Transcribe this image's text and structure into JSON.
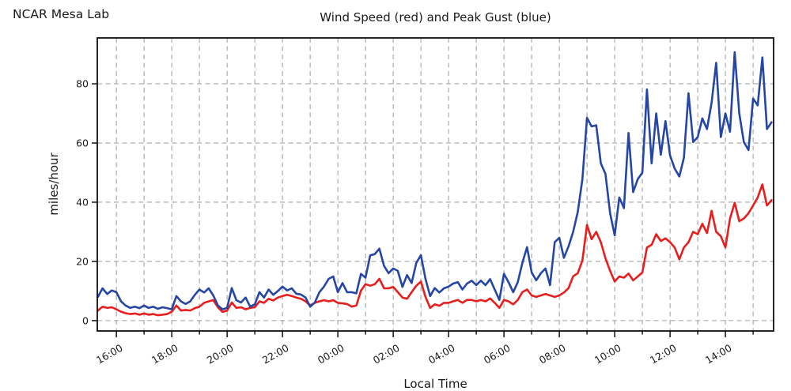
{
  "header": {
    "corner_label": "NCAR Mesa Lab"
  },
  "chart_data": {
    "type": "line",
    "title": "Wind Speed (red) and Peak Gust (blue)",
    "xlabel": "Local Time",
    "ylabel": "miles/hour",
    "grid": true,
    "legend_position": "none",
    "x_start_hour": 15.333,
    "x_step_minutes": 10,
    "xlim": [
      15.31,
      39.74
    ],
    "ylim": [
      -3.5,
      95.5
    ],
    "yticks": [
      0,
      20,
      40,
      60,
      80
    ],
    "xticks": [
      {
        "hour": 16,
        "label": "16:00"
      },
      {
        "hour": 18,
        "label": "18:00"
      },
      {
        "hour": 20,
        "label": "20:00"
      },
      {
        "hour": 22,
        "label": "22:00"
      },
      {
        "hour": 24,
        "label": "00:00"
      },
      {
        "hour": 26,
        "label": "02:00"
      },
      {
        "hour": 28,
        "label": "04:00"
      },
      {
        "hour": 30,
        "label": "06:00"
      },
      {
        "hour": 32,
        "label": "08:00"
      },
      {
        "hour": 34,
        "label": "10:00"
      },
      {
        "hour": 36,
        "label": "12:00"
      },
      {
        "hour": 38,
        "label": "14:00"
      }
    ],
    "minor_tick_every_hours": 1,
    "colors": {
      "wind_speed": "#e81e1e",
      "peak_gust": "#2646a5",
      "grid": "#a3a3a3",
      "spine": "#000000",
      "text": "#1a1a1a"
    },
    "series": [
      {
        "name": "Wind Speed",
        "color_key": "wind_speed",
        "values": [
          3.4,
          4.7,
          4.3,
          4.5,
          3.8,
          3,
          2.5,
          2.2,
          2.4,
          2,
          2.4,
          2,
          2.2,
          1.8,
          2,
          2.2,
          3,
          5.1,
          3.4,
          3.6,
          3.4,
          4.2,
          4.7,
          6,
          6.5,
          6.9,
          4.5,
          2.9,
          3.4,
          6.1,
          4.3,
          4.5,
          3.8,
          4.3,
          4.5,
          6.5,
          6,
          7.4,
          6.8,
          7.8,
          8.3,
          8.7,
          8.3,
          7.8,
          7.4,
          6.5,
          5.1,
          6,
          6.5,
          6.9,
          6.5,
          6.9,
          6,
          5.8,
          5.6,
          4.7,
          5.1,
          10.1,
          12.3,
          11.8,
          12.3,
          14.1,
          10.9,
          10.9,
          11.4,
          9.6,
          7.8,
          7.4,
          9.6,
          11.8,
          13.2,
          8,
          4.3,
          5.5,
          5,
          6,
          6,
          6.5,
          7,
          6,
          7,
          7,
          6.5,
          7,
          6.5,
          7.5,
          6,
          4.3,
          7,
          6.5,
          5.5,
          7,
          9.6,
          10.5,
          8.5,
          8,
          8.5,
          9,
          8.5,
          8,
          8.5,
          9.5,
          11,
          15,
          16,
          20.3,
          32.3,
          27.5,
          30,
          26.5,
          21.1,
          16.8,
          13.2,
          14.9,
          14.5,
          15.9,
          13.6,
          14.9,
          16.3,
          24.7,
          25.6,
          29.2,
          26.9,
          27.8,
          26.5,
          24.7,
          20.7,
          24.7,
          26.5,
          30,
          29.2,
          32.7,
          29.6,
          37.1,
          30,
          28.5,
          24.7,
          34.5,
          39.8,
          33.6,
          34.5,
          36.3,
          38.9,
          41.6,
          46,
          38.9,
          40.7
        ]
      },
      {
        "name": "Peak Gust",
        "color_key": "peak_gust",
        "values": [
          8,
          10.9,
          9,
          10.2,
          9.6,
          6.5,
          5.1,
          4.3,
          4.7,
          4.2,
          5.1,
          4.3,
          4.7,
          4,
          4.5,
          4.2,
          3.8,
          8.3,
          6.5,
          5.6,
          6.5,
          8.7,
          10.5,
          9.5,
          10.9,
          8.5,
          5.1,
          3.8,
          4.3,
          11,
          6.9,
          6.1,
          7.8,
          4.7,
          5.5,
          9.6,
          7.8,
          10.5,
          8.7,
          10,
          11.5,
          10.2,
          10.9,
          9.1,
          8.8,
          7.8,
          4.7,
          6.1,
          9.6,
          11.5,
          14.1,
          14.9,
          9.6,
          12.7,
          9.6,
          9.6,
          9.2,
          15.8,
          14.5,
          22,
          22.5,
          24.3,
          18.5,
          16,
          17.6,
          16.8,
          11.4,
          15.4,
          12.7,
          19.5,
          22.1,
          14.1,
          8.3,
          11,
          9.5,
          10.9,
          11.5,
          12.5,
          13,
          10.5,
          12.5,
          13.5,
          12,
          13.5,
          12,
          14,
          10.5,
          7,
          15.8,
          13,
          9.6,
          13,
          19.5,
          24.8,
          16.3,
          13.6,
          16,
          17.6,
          12,
          26.5,
          28,
          21.2,
          25.1,
          30,
          36.7,
          47.8,
          68.5,
          65.6,
          66,
          53.1,
          49.6,
          36.3,
          28.8,
          41.6,
          38,
          63.4,
          43.4,
          47.8,
          50,
          78.1,
          53.1,
          70,
          56,
          67.4,
          55.8,
          51.4,
          48.7,
          55,
          76.8,
          60.3,
          62,
          68.3,
          64.7,
          73.6,
          87.1,
          62,
          70,
          63.8,
          90.7,
          70,
          60.3,
          57.6,
          75,
          72.7,
          88.9,
          64.7,
          67
        ]
      }
    ]
  }
}
